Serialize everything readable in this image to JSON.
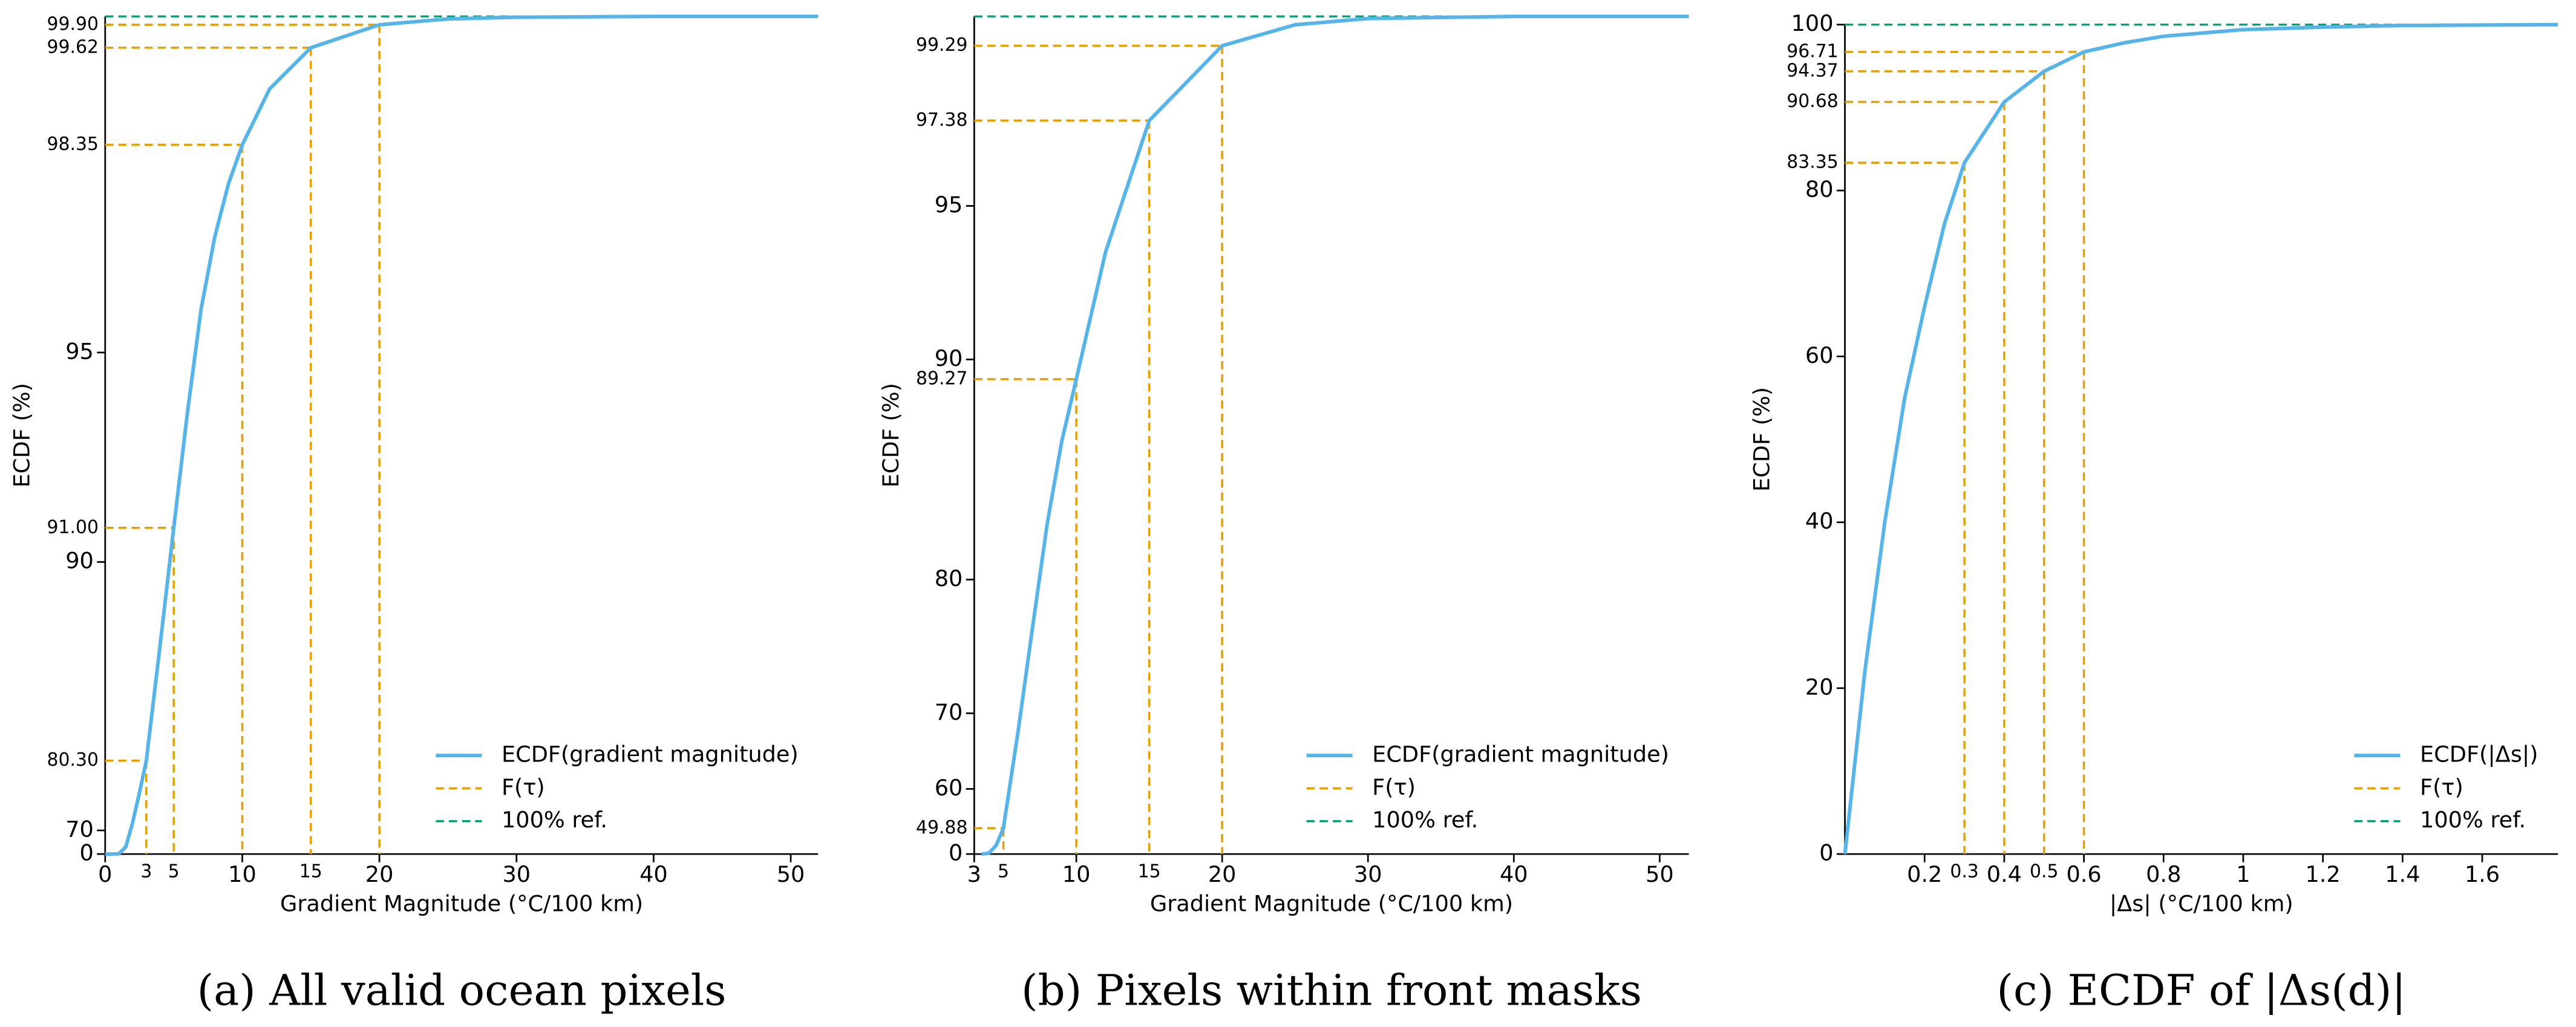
{
  "chart_data": [
    {
      "type": "line",
      "caption": "(a) All valid ocean pixels",
      "xlabel": "Gradient Magnitude (°C/100 km)",
      "ylabel": "ECDF (%)",
      "xlim": [
        0,
        52
      ],
      "ylim": [
        0,
        100
      ],
      "xticks": [
        0,
        10,
        20,
        30,
        40,
        50
      ],
      "yticks": [
        0,
        70,
        90,
        95
      ],
      "yscale": "power",
      "yexponent": 10,
      "legend": "lower right",
      "series": [
        {
          "name": "ECDF(gradient magnitude)",
          "color": "#56b4e9",
          "x": [
            0,
            0.5,
            1,
            1.5,
            2,
            2.5,
            3,
            4,
            5,
            6,
            7,
            8,
            9,
            10,
            12,
            15,
            20,
            25,
            30,
            40,
            52
          ],
          "values": [
            0,
            20,
            45,
            62,
            72,
            77,
            80.3,
            87,
            91,
            93.8,
            95.8,
            97,
            97.8,
            98.35,
            99.1,
            99.62,
            99.9,
            99.97,
            99.99,
            100,
            100
          ]
        },
        {
          "name": "F(τ)",
          "color": "#e69f00",
          "x": [
            3,
            5,
            10,
            15,
            20
          ],
          "values": [
            80.3,
            91,
            98.35,
            99.62,
            99.9
          ],
          "value_labels": [
            "80.30",
            "91.00",
            "98.35",
            "99.62",
            "99.90"
          ]
        },
        {
          "name": "100% ref.",
          "color": "#009e73",
          "values": [
            100
          ]
        }
      ]
    },
    {
      "type": "line",
      "caption": "(b) Pixels within front masks",
      "xlabel": "Gradient Magnitude (°C/100 km)",
      "ylabel": "ECDF (%)",
      "xlim": [
        3,
        52
      ],
      "ylim": [
        0,
        100
      ],
      "xticks": [
        3,
        10,
        20,
        30,
        40,
        50
      ],
      "yticks": [
        0,
        60,
        70,
        80,
        90,
        95
      ],
      "yscale": "power",
      "yexponent": 5,
      "legend": "lower right",
      "series": [
        {
          "name": "ECDF(gradient magnitude)",
          "color": "#56b4e9",
          "x": [
            3.5,
            4,
            4.5,
            5,
            6,
            7,
            8,
            9,
            10,
            12,
            15,
            20,
            25,
            30,
            40,
            52
          ],
          "values": [
            5,
            25,
            40,
            49.88,
            68,
            77,
            83,
            86.8,
            89.27,
            93.6,
            97.38,
            99.29,
            99.8,
            99.95,
            100,
            100
          ]
        },
        {
          "name": "F(τ)",
          "color": "#e69f00",
          "x": [
            5,
            10,
            15,
            20
          ],
          "values": [
            49.88,
            89.27,
            97.38,
            99.29
          ],
          "value_labels": [
            "49.88",
            "89.27",
            "97.38",
            "99.29"
          ]
        },
        {
          "name": "100% ref.",
          "color": "#009e73",
          "values": [
            100
          ]
        }
      ]
    },
    {
      "type": "line",
      "caption": "(c) ECDF of |Δs(d)|",
      "xlabel": "|Δs| (°C/100 km)",
      "ylabel": "ECDF (%)",
      "xlim": [
        0,
        1.79
      ],
      "ylim": [
        0,
        100
      ],
      "xticks": [
        0.2,
        0.4,
        0.6,
        0.8,
        1.0,
        1.2,
        1.4,
        1.6
      ],
      "yticks": [
        0,
        20,
        40,
        60,
        80,
        100
      ],
      "yscale": "linear",
      "legend": "lower right",
      "series": [
        {
          "name": "ECDF(|Δs|)",
          "color": "#56b4e9",
          "x": [
            0,
            0.05,
            0.1,
            0.15,
            0.2,
            0.25,
            0.3,
            0.4,
            0.5,
            0.6,
            0.7,
            0.8,
            1.0,
            1.2,
            1.4,
            1.6,
            1.79
          ],
          "values": [
            0,
            22,
            40,
            55,
            66,
            76,
            83.35,
            90.68,
            94.37,
            96.71,
            97.8,
            98.6,
            99.4,
            99.7,
            99.9,
            99.95,
            100
          ]
        },
        {
          "name": "F(τ)",
          "color": "#e69f00",
          "x": [
            0.3,
            0.4,
            0.5,
            0.6
          ],
          "values": [
            83.35,
            90.68,
            94.37,
            96.71
          ],
          "value_labels": [
            "83.35",
            "90.68",
            "94.37",
            "96.71"
          ]
        },
        {
          "name": "100% ref.",
          "color": "#009e73",
          "values": [
            100
          ]
        }
      ]
    }
  ]
}
